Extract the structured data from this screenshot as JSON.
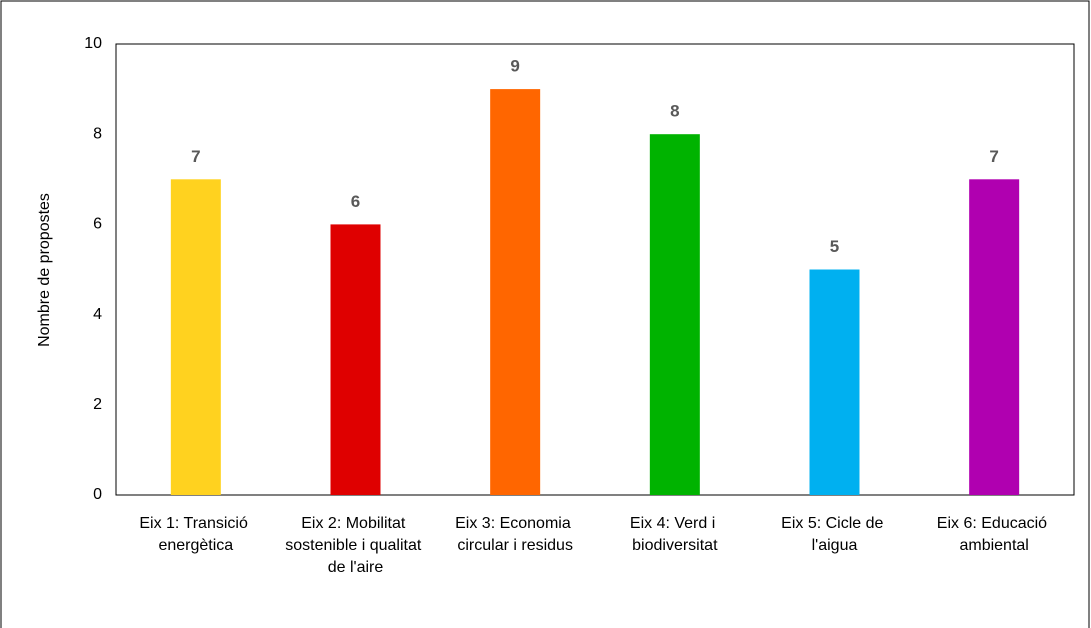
{
  "chart_data": {
    "type": "bar",
    "y_label": "Nombre de propostes",
    "categories": [
      "Eix 1: Transició energètica",
      "Eix 2: Mobilitat sostenible i qualitat de l'aire",
      "Eix 3: Economia circular i residus",
      "Eix 4: Verd i biodiversitat",
      "Eix 5: Cicle de l'aigua",
      "Eix 6: Educació ambiental"
    ],
    "values": [
      7,
      6,
      9,
      8,
      5,
      7
    ],
    "colors": [
      "#ffd21f",
      "#df0000",
      "#ff6600",
      "#00b300",
      "#00b0f0",
      "#b000b0"
    ],
    "ylim": [
      0,
      10
    ],
    "yticks": [
      0,
      2,
      4,
      6,
      8,
      10
    ],
    "grid": false
  }
}
